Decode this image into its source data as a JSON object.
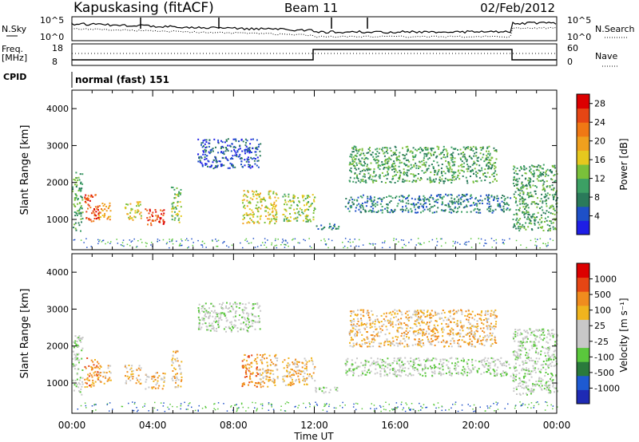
{
  "header": {
    "station": "Kapuskasing (fitACF)",
    "beam": "Beam 11",
    "date": "02/Feb/2012"
  },
  "noise_panel": {
    "left_label": "N.Sky",
    "right_label": "N.Search",
    "left_ticks": [
      "10^5",
      "10^0"
    ],
    "right_ticks": [
      "10^5",
      "10^0"
    ]
  },
  "freq_panel": {
    "left_label_1": "Freq.",
    "left_label_2": "[MHz]",
    "right_label": "Nave",
    "left_ticks": [
      "18",
      "8"
    ],
    "right_ticks": [
      "60",
      "0"
    ]
  },
  "cpid_panel": {
    "label": "CPID",
    "mode": "normal (fast) 151"
  },
  "colors": {
    "power_scale": [
      "#1e1ee6",
      "#1e50c8",
      "#2a7a5a",
      "#3ca064",
      "#7ac03a",
      "#e6c81e",
      "#f0a01e",
      "#f07814",
      "#e64614",
      "#dc0000"
    ],
    "velocity_scale": [
      "#1e2ab4",
      "#1e5ad2",
      "#2a7a3c",
      "#5ac83c",
      "#c8c8c8",
      "#c8c8c8",
      "#f0b41e",
      "#f08c1e",
      "#e64614",
      "#dc0000"
    ],
    "ground_scatter": "#c8c8c8"
  },
  "chart_data": [
    {
      "type": "heatmap",
      "name": "power",
      "ylabel": "Slant Range [km]",
      "xlabel": "Time UT",
      "x_ticks": [
        "00:00",
        "04:00",
        "08:00",
        "12:00",
        "16:00",
        "20:00",
        "00:00"
      ],
      "y_ticks": [
        1000,
        2000,
        3000,
        4000
      ],
      "xlim_hours": [
        0,
        24
      ],
      "ylim_km": [
        180,
        4500
      ],
      "colorbar": {
        "label": "Power [dB]",
        "ticks": [
          4,
          8,
          12,
          16,
          20,
          24,
          28
        ],
        "range": [
          0,
          30
        ]
      },
      "echo_regions": [
        {
          "t0": 0.0,
          "t1": 0.5,
          "r0": 700,
          "r1": 2300,
          "level": 3
        },
        {
          "t0": 0.6,
          "t1": 1.3,
          "r0": 900,
          "r1": 1700,
          "level": 8
        },
        {
          "t0": 1.3,
          "t1": 1.9,
          "r0": 1000,
          "r1": 1500,
          "level": 6
        },
        {
          "t0": 2.6,
          "t1": 3.4,
          "r0": 1000,
          "r1": 1500,
          "level": 5
        },
        {
          "t0": 3.6,
          "t1": 4.6,
          "r0": 850,
          "r1": 1300,
          "level": 8
        },
        {
          "t0": 4.9,
          "t1": 5.4,
          "r0": 900,
          "r1": 1900,
          "level": 4
        },
        {
          "t0": 6.2,
          "t1": 9.3,
          "r0": 2400,
          "r1": 3200,
          "level": 1
        },
        {
          "t0": 8.4,
          "t1": 9.2,
          "r0": 900,
          "r1": 1800,
          "level": 5
        },
        {
          "t0": 9.2,
          "t1": 10.2,
          "r0": 900,
          "r1": 1800,
          "level": 5
        },
        {
          "t0": 10.4,
          "t1": 12.0,
          "r0": 950,
          "r1": 1700,
          "level": 4
        },
        {
          "t0": 12.0,
          "t1": 13.2,
          "r0": 750,
          "r1": 900,
          "level": 2
        },
        {
          "t0": 13.5,
          "t1": 21.7,
          "r0": 1200,
          "r1": 1700,
          "level": 2
        },
        {
          "t0": 13.7,
          "t1": 21.0,
          "r0": 2000,
          "r1": 3000,
          "level": 3
        },
        {
          "t0": 21.8,
          "t1": 24.0,
          "r0": 700,
          "r1": 2500,
          "level": 3
        }
      ]
    },
    {
      "type": "heatmap",
      "name": "velocity",
      "ylabel": "Slant Range [km]",
      "xlabel": "Time UT",
      "x_ticks": [
        "00:00",
        "04:00",
        "08:00",
        "12:00",
        "16:00",
        "20:00",
        "00:00"
      ],
      "y_ticks": [
        1000,
        2000,
        3000,
        4000
      ],
      "xlim_hours": [
        0,
        24
      ],
      "ylim_km": [
        180,
        4500
      ],
      "colorbar": {
        "label": "Velocity [m s⁻¹]",
        "ticks": [
          1000,
          500,
          100,
          25,
          -25,
          -100,
          -500,
          -1000
        ]
      },
      "echo_regions": [
        {
          "t0": 0.0,
          "t1": 0.5,
          "r0": 700,
          "r1": 2300,
          "level": 4
        },
        {
          "t0": 0.6,
          "t1": 1.3,
          "r0": 900,
          "r1": 1700,
          "level": 7
        },
        {
          "t0": 1.3,
          "t1": 1.9,
          "r0": 1000,
          "r1": 1500,
          "level": 6
        },
        {
          "t0": 2.6,
          "t1": 3.4,
          "r0": 1000,
          "r1": 1500,
          "level": 6
        },
        {
          "t0": 3.6,
          "t1": 4.6,
          "r0": 850,
          "r1": 1300,
          "level": 6
        },
        {
          "t0": 4.9,
          "t1": 5.4,
          "r0": 900,
          "r1": 1900,
          "level": 6
        },
        {
          "t0": 6.2,
          "t1": 9.3,
          "r0": 2400,
          "r1": 3200,
          "level": 4
        },
        {
          "t0": 8.4,
          "t1": 9.2,
          "r0": 900,
          "r1": 1800,
          "level": 7
        },
        {
          "t0": 9.2,
          "t1": 10.2,
          "r0": 900,
          "r1": 1800,
          "level": 6
        },
        {
          "t0": 10.4,
          "t1": 12.0,
          "r0": 950,
          "r1": 1700,
          "level": 6
        },
        {
          "t0": 12.0,
          "t1": 13.2,
          "r0": 750,
          "r1": 900,
          "level": 4
        },
        {
          "t0": 13.5,
          "t1": 21.7,
          "r0": 1200,
          "r1": 1700,
          "level": 4
        },
        {
          "t0": 13.7,
          "t1": 21.0,
          "r0": 2000,
          "r1": 3000,
          "level": 6
        },
        {
          "t0": 21.8,
          "t1": 24.0,
          "r0": 700,
          "r1": 2500,
          "level": 4
        }
      ]
    }
  ]
}
